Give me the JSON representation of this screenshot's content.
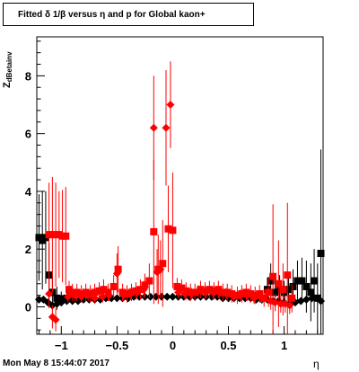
{
  "title_text": "Fitted δ 1/β versus η and p for Global kaon+",
  "footer_text": "Mon May  8 15:44:07 2017",
  "chart_data": {
    "type": "scatter",
    "title": "Fitted δ 1/β versus η and p for Global kaon+",
    "xlabel": "η",
    "ylabel_main": "Z",
    "ylabel_sub": "dBetainv",
    "xlim": [
      -1.22,
      1.35
    ],
    "ylim": [
      -0.95,
      9.35
    ],
    "x_ticks": [
      -1,
      -0.5,
      0,
      0.5,
      1
    ],
    "x_tick_labels": [
      "−1",
      "−0.5",
      "0",
      "0.5",
      "1"
    ],
    "y_ticks": [
      0,
      2,
      4,
      6,
      8
    ],
    "y_tick_labels": [
      "0",
      "2",
      "4",
      "6",
      "8"
    ],
    "grid": false,
    "series": [
      {
        "color": "#000000",
        "marker": "square",
        "points": [
          {
            "x": -1.2,
            "y": 2.4,
            "err": 1.5
          },
          {
            "x": -1.17,
            "y": 2.3,
            "err": 1.7
          },
          {
            "x": -1.14,
            "y": 2.4,
            "err": 1.6
          },
          {
            "x": -1.11,
            "y": 1.1,
            "err": 1.1
          },
          {
            "x": -1.08,
            "y": 0.5,
            "err": 0.6
          },
          {
            "x": -1.04,
            "y": 0.3,
            "err": 0.4
          },
          {
            "x": -1.0,
            "y": 0.28,
            "err": 0.25
          },
          {
            "x": -0.95,
            "y": 0.3,
            "err": 0.2
          },
          {
            "x": -0.9,
            "y": 0.3,
            "err": 0.15
          },
          {
            "x": 0.85,
            "y": 0.6,
            "err": 0.4
          },
          {
            "x": 0.88,
            "y": 0.9,
            "err": 0.6
          },
          {
            "x": 0.92,
            "y": 0.5,
            "err": 0.5
          },
          {
            "x": 0.96,
            "y": 0.6,
            "err": 0.5
          },
          {
            "x": 1.0,
            "y": 0.5,
            "err": 0.4
          },
          {
            "x": 1.04,
            "y": 0.6,
            "err": 0.5
          },
          {
            "x": 1.08,
            "y": 0.7,
            "err": 0.6
          },
          {
            "x": 1.12,
            "y": 0.9,
            "err": 0.7
          },
          {
            "x": 1.16,
            "y": 0.9,
            "err": 0.8
          },
          {
            "x": 1.2,
            "y": 0.7,
            "err": 0.9
          },
          {
            "x": 1.24,
            "y": 0.5,
            "err": 1.0
          },
          {
            "x": 1.27,
            "y": 0.9,
            "err": 1.1
          },
          {
            "x": 1.3,
            "y": 0.3,
            "err": 1.2
          },
          {
            "x": 1.33,
            "y": 1.85,
            "err": 3.6
          }
        ]
      },
      {
        "color": "#000000",
        "marker": "diamond",
        "points": [
          {
            "x": -1.2,
            "y": 0.25,
            "err": 0.1
          },
          {
            "x": -1.16,
            "y": 0.25,
            "err": 0.1
          },
          {
            "x": -1.12,
            "y": 0.15,
            "err": 0.1
          },
          {
            "x": -1.08,
            "y": 0.05,
            "err": 0.1
          },
          {
            "x": -1.04,
            "y": 0.1,
            "err": 0.1
          },
          {
            "x": -1.0,
            "y": 0.15,
            "err": 0.1
          },
          {
            "x": -0.95,
            "y": 0.2,
            "err": 0.08
          },
          {
            "x": -0.9,
            "y": 0.2,
            "err": 0.08
          },
          {
            "x": -0.85,
            "y": 0.2,
            "err": 0.08
          },
          {
            "x": -0.8,
            "y": 0.25,
            "err": 0.08
          },
          {
            "x": -0.75,
            "y": 0.25,
            "err": 0.08
          },
          {
            "x": -0.7,
            "y": 0.25,
            "err": 0.08
          },
          {
            "x": -0.65,
            "y": 0.25,
            "err": 0.08
          },
          {
            "x": -0.6,
            "y": 0.3,
            "err": 0.08
          },
          {
            "x": -0.55,
            "y": 0.3,
            "err": 0.08
          },
          {
            "x": -0.5,
            "y": 0.3,
            "err": 0.08
          },
          {
            "x": -0.45,
            "y": 0.3,
            "err": 0.08
          },
          {
            "x": -0.4,
            "y": 0.3,
            "err": 0.08
          },
          {
            "x": -0.35,
            "y": 0.35,
            "err": 0.08
          },
          {
            "x": -0.3,
            "y": 0.35,
            "err": 0.08
          },
          {
            "x": -0.25,
            "y": 0.35,
            "err": 0.08
          },
          {
            "x": -0.2,
            "y": 0.35,
            "err": 0.08
          },
          {
            "x": -0.15,
            "y": 0.35,
            "err": 0.08
          },
          {
            "x": -0.1,
            "y": 0.35,
            "err": 0.08
          },
          {
            "x": -0.05,
            "y": 0.35,
            "err": 0.08
          },
          {
            "x": 0.0,
            "y": 0.35,
            "err": 0.08
          },
          {
            "x": 0.05,
            "y": 0.35,
            "err": 0.08
          },
          {
            "x": 0.1,
            "y": 0.35,
            "err": 0.08
          },
          {
            "x": 0.15,
            "y": 0.35,
            "err": 0.08
          },
          {
            "x": 0.2,
            "y": 0.35,
            "err": 0.08
          },
          {
            "x": 0.25,
            "y": 0.35,
            "err": 0.08
          },
          {
            "x": 0.3,
            "y": 0.35,
            "err": 0.08
          },
          {
            "x": 0.35,
            "y": 0.35,
            "err": 0.08
          },
          {
            "x": 0.4,
            "y": 0.35,
            "err": 0.08
          },
          {
            "x": 0.45,
            "y": 0.3,
            "err": 0.08
          },
          {
            "x": 0.5,
            "y": 0.3,
            "err": 0.08
          },
          {
            "x": 0.55,
            "y": 0.3,
            "err": 0.08
          },
          {
            "x": 0.6,
            "y": 0.3,
            "err": 0.08
          },
          {
            "x": 0.65,
            "y": 0.3,
            "err": 0.08
          },
          {
            "x": 0.7,
            "y": 0.3,
            "err": 0.08
          },
          {
            "x": 0.75,
            "y": 0.25,
            "err": 0.08
          },
          {
            "x": 0.8,
            "y": 0.25,
            "err": 0.08
          },
          {
            "x": 0.85,
            "y": 0.25,
            "err": 0.08
          },
          {
            "x": 0.9,
            "y": 0.2,
            "err": 0.08
          },
          {
            "x": 0.95,
            "y": 0.2,
            "err": 0.08
          },
          {
            "x": 1.0,
            "y": 0.15,
            "err": 0.08
          },
          {
            "x": 1.05,
            "y": 0.1,
            "err": 0.1
          },
          {
            "x": 1.1,
            "y": 0.15,
            "err": 0.1
          },
          {
            "x": 1.15,
            "y": 0.2,
            "err": 0.1
          },
          {
            "x": 1.2,
            "y": 0.25,
            "err": 0.1
          },
          {
            "x": 1.25,
            "y": 0.3,
            "err": 0.1
          },
          {
            "x": 1.3,
            "y": 0.3,
            "err": 0.1
          },
          {
            "x": 1.33,
            "y": 0.2,
            "err": 0.1
          }
        ]
      },
      {
        "color": "#ff0000",
        "marker": "square",
        "points": [
          {
            "x": -1.11,
            "y": 2.5,
            "err": 1.8
          },
          {
            "x": -1.08,
            "y": 2.5,
            "err": 2.0
          },
          {
            "x": -1.05,
            "y": 2.5,
            "err": 1.8
          },
          {
            "x": -1.02,
            "y": 2.5,
            "err": 1.5
          },
          {
            "x": -0.99,
            "y": 2.45,
            "err": 1.6
          },
          {
            "x": -0.96,
            "y": 2.45,
            "err": 1.7
          },
          {
            "x": -0.93,
            "y": 0.6,
            "err": 0.3
          },
          {
            "x": -0.9,
            "y": 0.5,
            "err": 0.3
          },
          {
            "x": -0.86,
            "y": 0.5,
            "err": 0.3
          },
          {
            "x": -0.82,
            "y": 0.45,
            "err": 0.3
          },
          {
            "x": -0.78,
            "y": 0.5,
            "err": 0.3
          },
          {
            "x": -0.74,
            "y": 0.45,
            "err": 0.3
          },
          {
            "x": -0.7,
            "y": 0.5,
            "err": 0.3
          },
          {
            "x": -0.66,
            "y": 0.55,
            "err": 0.3
          },
          {
            "x": -0.62,
            "y": 0.6,
            "err": 0.35
          },
          {
            "x": -0.58,
            "y": 0.5,
            "err": 0.3
          },
          {
            "x": -0.53,
            "y": 0.7,
            "err": 0.4
          },
          {
            "x": -0.49,
            "y": 1.3,
            "err": 0.8
          },
          {
            "x": -0.45,
            "y": 0.5,
            "err": 0.3
          },
          {
            "x": -0.41,
            "y": 0.45,
            "err": 0.3
          },
          {
            "x": -0.37,
            "y": 0.5,
            "err": 0.3
          },
          {
            "x": -0.33,
            "y": 0.55,
            "err": 0.3
          },
          {
            "x": -0.29,
            "y": 0.6,
            "err": 0.35
          },
          {
            "x": -0.25,
            "y": 0.75,
            "err": 0.4
          },
          {
            "x": -0.21,
            "y": 0.9,
            "err": 0.6
          },
          {
            "x": -0.17,
            "y": 2.6,
            "err": 2.5
          },
          {
            "x": -0.13,
            "y": 1.3,
            "err": 1.2
          },
          {
            "x": -0.09,
            "y": 1.5,
            "err": 1.5
          },
          {
            "x": -0.04,
            "y": 2.7,
            "err": 1.5
          },
          {
            "x": 0.0,
            "y": 2.65,
            "err": 2.0
          },
          {
            "x": 0.04,
            "y": 0.7,
            "err": 0.3
          },
          {
            "x": 0.08,
            "y": 0.65,
            "err": 0.3
          },
          {
            "x": 0.12,
            "y": 0.55,
            "err": 0.3
          },
          {
            "x": 0.16,
            "y": 0.5,
            "err": 0.3
          },
          {
            "x": 0.2,
            "y": 0.5,
            "err": 0.3
          },
          {
            "x": 0.25,
            "y": 0.6,
            "err": 0.3
          },
          {
            "x": 0.29,
            "y": 0.55,
            "err": 0.3
          },
          {
            "x": 0.33,
            "y": 0.6,
            "err": 0.3
          },
          {
            "x": 0.37,
            "y": 0.55,
            "err": 0.3
          },
          {
            "x": 0.41,
            "y": 0.6,
            "err": 0.3
          },
          {
            "x": 0.45,
            "y": 0.5,
            "err": 0.3
          },
          {
            "x": 0.49,
            "y": 0.5,
            "err": 0.3
          },
          {
            "x": 0.53,
            "y": 0.45,
            "err": 0.3
          },
          {
            "x": 0.58,
            "y": 0.4,
            "err": 0.3
          },
          {
            "x": 0.62,
            "y": 0.45,
            "err": 0.3
          },
          {
            "x": 0.66,
            "y": 0.5,
            "err": 0.3
          },
          {
            "x": 0.7,
            "y": 0.45,
            "err": 0.3
          },
          {
            "x": 0.74,
            "y": 0.4,
            "err": 0.3
          },
          {
            "x": 0.78,
            "y": 0.45,
            "err": 0.3
          },
          {
            "x": 0.82,
            "y": 0.3,
            "err": 0.3
          },
          {
            "x": 0.86,
            "y": 0.5,
            "err": 0.5
          },
          {
            "x": 0.9,
            "y": 1.05,
            "err": 2.5
          },
          {
            "x": 0.95,
            "y": 0.8,
            "err": 1.5
          },
          {
            "x": 0.99,
            "y": 0.6,
            "err": 0.9
          },
          {
            "x": 1.03,
            "y": 1.1,
            "err": 2.5
          },
          {
            "x": 1.07,
            "y": 0.3,
            "err": 0.5
          }
        ]
      },
      {
        "color": "#ff0000",
        "marker": "diamond",
        "points": [
          {
            "x": -1.11,
            "y": 0.45,
            "err": 0.5
          },
          {
            "x": -1.08,
            "y": -0.35,
            "err": 0.4
          },
          {
            "x": -1.05,
            "y": -0.45,
            "err": 0.4
          },
          {
            "x": -0.94,
            "y": 0.35,
            "err": 0.2
          },
          {
            "x": -0.88,
            "y": 0.4,
            "err": 0.2
          },
          {
            "x": -0.82,
            "y": 0.35,
            "err": 0.2
          },
          {
            "x": -0.76,
            "y": 0.4,
            "err": 0.2
          },
          {
            "x": -0.7,
            "y": 0.3,
            "err": 0.2
          },
          {
            "x": -0.63,
            "y": 0.35,
            "err": 0.2
          },
          {
            "x": -0.57,
            "y": 0.4,
            "err": 0.2
          },
          {
            "x": -0.5,
            "y": 1.15,
            "err": 0.7
          },
          {
            "x": -0.44,
            "y": 0.4,
            "err": 0.2
          },
          {
            "x": -0.38,
            "y": 0.45,
            "err": 0.2
          },
          {
            "x": -0.32,
            "y": 0.5,
            "err": 0.2
          },
          {
            "x": -0.26,
            "y": 0.6,
            "err": 0.3
          },
          {
            "x": -0.17,
            "y": 6.2,
            "err": 1.8
          },
          {
            "x": -0.14,
            "y": 1.2,
            "err": 0.8
          },
          {
            "x": -0.11,
            "y": 1.3,
            "err": 1.0
          },
          {
            "x": -0.06,
            "y": 6.2,
            "err": 2.0
          },
          {
            "x": -0.02,
            "y": 7.0,
            "err": 1.5
          },
          {
            "x": 0.05,
            "y": 0.5,
            "err": 0.2
          },
          {
            "x": 0.11,
            "y": 0.45,
            "err": 0.2
          },
          {
            "x": 0.17,
            "y": 0.45,
            "err": 0.2
          },
          {
            "x": 0.23,
            "y": 0.55,
            "err": 0.2
          },
          {
            "x": 0.3,
            "y": 0.5,
            "err": 0.2
          },
          {
            "x": 0.36,
            "y": 0.5,
            "err": 0.2
          },
          {
            "x": 0.42,
            "y": 0.5,
            "err": 0.2
          },
          {
            "x": 0.48,
            "y": 0.45,
            "err": 0.2
          },
          {
            "x": 0.55,
            "y": 0.35,
            "err": 0.2
          },
          {
            "x": 0.61,
            "y": 0.4,
            "err": 0.2
          },
          {
            "x": 0.67,
            "y": 0.4,
            "err": 0.2
          },
          {
            "x": 0.73,
            "y": 0.3,
            "err": 0.2
          },
          {
            "x": 0.8,
            "y": 0.3,
            "err": 0.2
          },
          {
            "x": 0.88,
            "y": 0.2,
            "err": 0.3
          },
          {
            "x": 0.92,
            "y": 0.15,
            "err": 0.3
          },
          {
            "x": 0.97,
            "y": 0.1,
            "err": 0.3
          },
          {
            "x": 1.01,
            "y": 0.1,
            "err": 0.3
          },
          {
            "x": 1.05,
            "y": 0.05,
            "err": 0.3
          }
        ]
      }
    ]
  }
}
